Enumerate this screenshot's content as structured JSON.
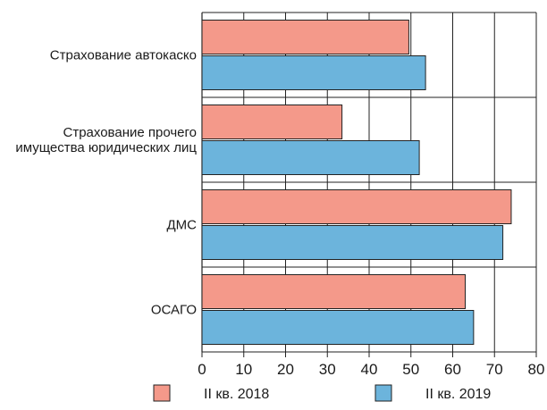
{
  "chart_data": {
    "type": "bar",
    "orientation": "horizontal",
    "categories": [
      [
        "Страхование автокаско"
      ],
      [
        "Страхование прочего",
        "имущества юридических лиц"
      ],
      [
        "ДМС"
      ],
      [
        "ОСАГО"
      ]
    ],
    "series": [
      {
        "name": "II кв. 2018",
        "color": "#F4998A",
        "values": [
          49.5,
          33.5,
          74,
          63
        ]
      },
      {
        "name": "II кв. 2019",
        "color": "#6CB4DC",
        "values": [
          53.5,
          52,
          72,
          65
        ]
      }
    ],
    "xlim": [
      0,
      80
    ],
    "xticks": [
      0,
      10,
      20,
      30,
      40,
      50,
      60,
      70,
      80
    ],
    "grid": true,
    "legend_position": "bottom"
  }
}
